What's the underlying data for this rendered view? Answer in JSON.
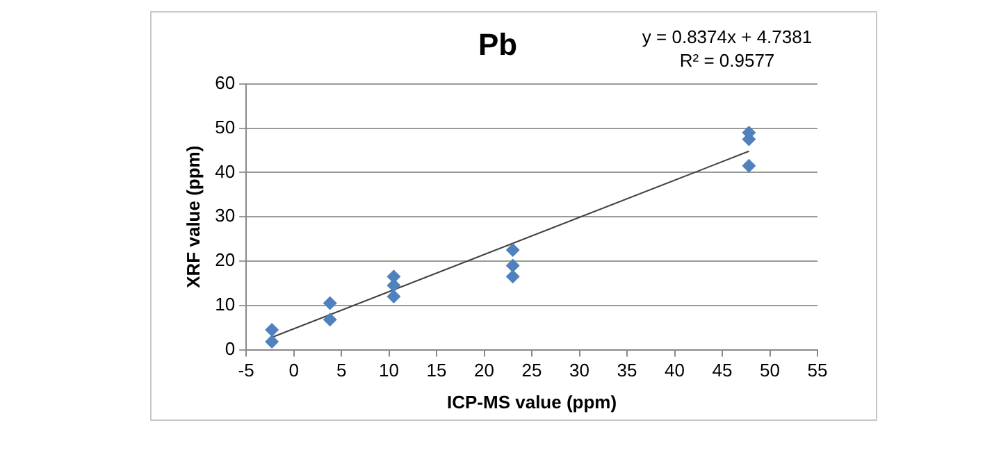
{
  "chart_data": {
    "type": "scatter",
    "title": "Pb",
    "xlabel": "ICP-MS value (ppm)",
    "ylabel": "XRF value (ppm)",
    "annotations": [
      "y = 0.8374x + 4.7381",
      "R² = 0.9577"
    ],
    "xlim": [
      -5,
      55
    ],
    "xticks": [
      -5,
      0,
      5,
      10,
      15,
      20,
      25,
      30,
      35,
      40,
      45,
      50,
      55
    ],
    "ylim": [
      0,
      60
    ],
    "yticks": [
      0,
      10,
      20,
      30,
      40,
      50,
      60
    ],
    "grid": "y",
    "legend": false,
    "marker": "diamond",
    "series": [
      {
        "color": "#4f81bd",
        "x": [
          -2.3,
          -2.3,
          3.8,
          3.8,
          10.5,
          10.5,
          10.5,
          23,
          23,
          23,
          47.8,
          47.8,
          47.8
        ],
        "values": [
          4.5,
          1.8,
          10.5,
          6.8,
          16.5,
          14.5,
          12,
          22.5,
          19,
          16.5,
          49,
          47.5,
          41.5
        ]
      },
      {
        "type": "line",
        "color": "#404040",
        "marker": "none",
        "line_style": "solid",
        "x": [
          -2.3,
          47.8
        ],
        "values": [
          2.8,
          44.8
        ]
      }
    ]
  }
}
